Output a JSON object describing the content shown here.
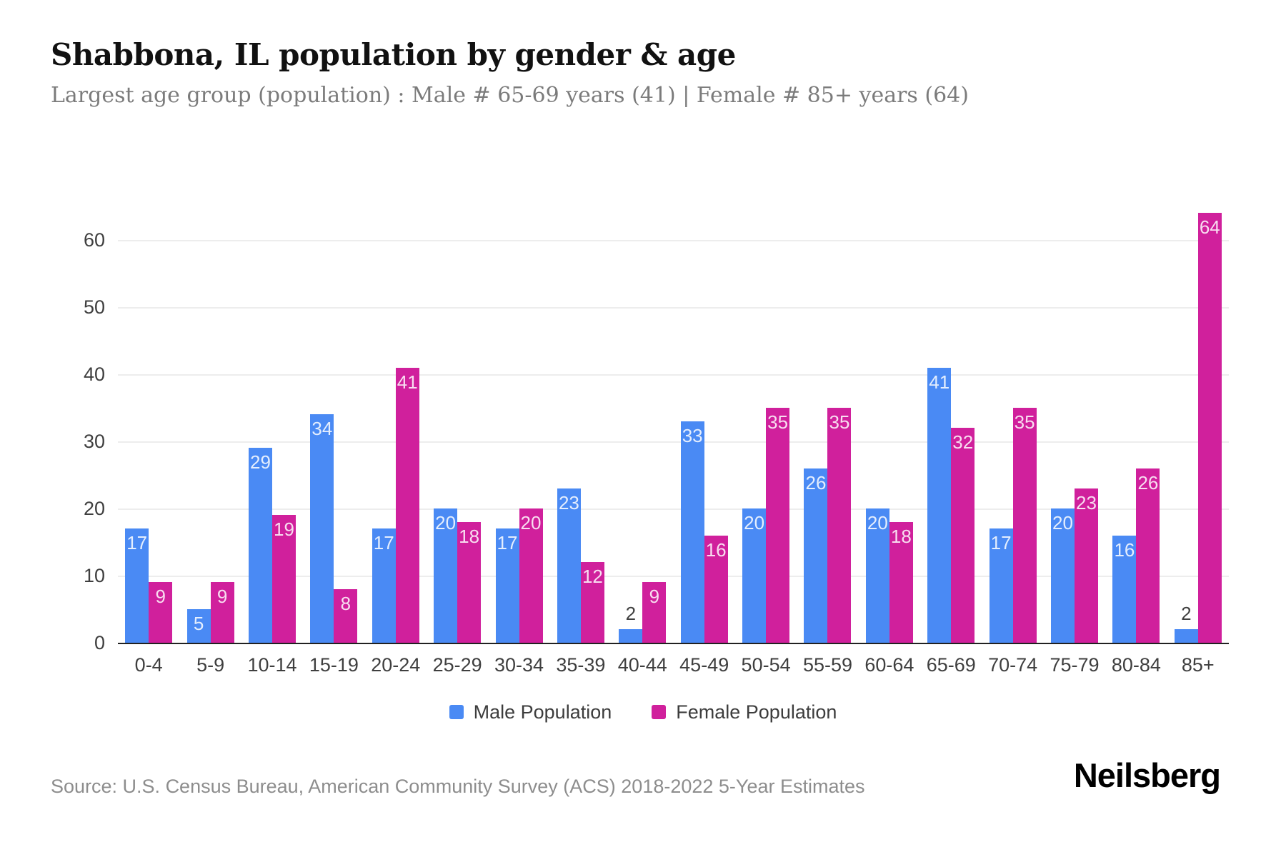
{
  "chart_data": {
    "type": "bar",
    "title": "Shabbona, IL population by gender & age",
    "subtitle": "Largest age group (population) : Male # 65-69 years (41) | Female # 85+ years (64)",
    "categories": [
      "0-4",
      "5-9",
      "10-14",
      "15-19",
      "20-24",
      "25-29",
      "30-34",
      "35-39",
      "40-44",
      "45-49",
      "50-54",
      "55-59",
      "60-64",
      "65-69",
      "70-74",
      "75-79",
      "80-84",
      "85+"
    ],
    "series": [
      {
        "name": "Male Population",
        "color": "#4a8af4",
        "values": [
          17,
          5,
          29,
          34,
          17,
          20,
          17,
          23,
          2,
          33,
          20,
          26,
          20,
          41,
          17,
          20,
          16,
          2
        ]
      },
      {
        "name": "Female Population",
        "color": "#d0209c",
        "values": [
          9,
          9,
          19,
          8,
          41,
          18,
          20,
          12,
          9,
          16,
          35,
          35,
          18,
          32,
          35,
          23,
          26,
          64
        ]
      }
    ],
    "y_ticks": [
      0,
      10,
      20,
      30,
      40,
      50,
      60
    ],
    "ylim": [
      0,
      66
    ],
    "grid": "horizontal",
    "legend_position": "bottom",
    "value_labels": "inside-top",
    "source": "Source: U.S. Census Bureau, American Community Survey (ACS) 2018-2022 5-Year Estimates",
    "brand": "Neilsberg"
  },
  "colors": {
    "male": "#4a8af4",
    "female": "#d0209c",
    "title_text": "#111111",
    "subtitle_text": "#7b7b7b",
    "axis_text": "#3f3f3f",
    "gridline": "#ededed",
    "axis_line": "#212121",
    "source_text": "#8d8d8d"
  }
}
